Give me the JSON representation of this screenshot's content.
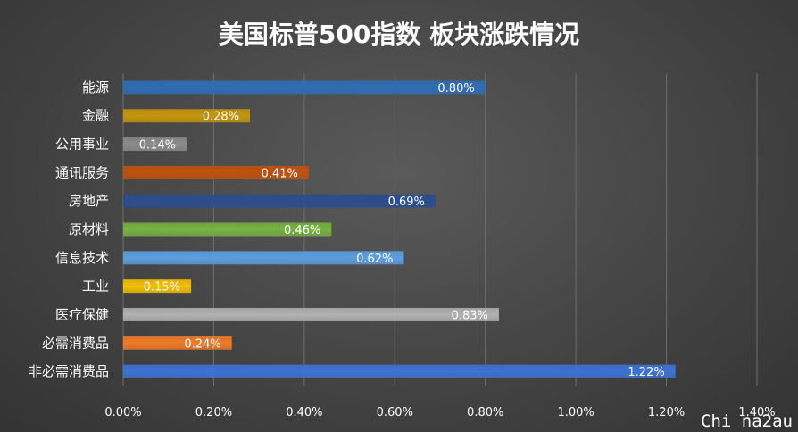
{
  "chart_data": {
    "type": "bar",
    "orientation": "horizontal",
    "title": "美国标普500指数 板块涨跌情况",
    "categories": [
      "能源",
      "金融",
      "公用事业",
      "通讯服务",
      "房地产",
      "原材料",
      "信息技术",
      "工业",
      "医疗保健",
      "必需消费品",
      "非必需消费品"
    ],
    "values": [
      0.8,
      0.28,
      0.14,
      0.41,
      0.69,
      0.46,
      0.62,
      0.15,
      0.83,
      0.24,
      1.22
    ],
    "value_labels": [
      "0.80%",
      "0.28%",
      "0.14%",
      "0.41%",
      "0.69%",
      "0.46%",
      "0.62%",
      "0.15%",
      "0.83%",
      "0.24%",
      "1.22%"
    ],
    "colors": [
      "#2f6db5",
      "#c4960c",
      "#8c8c8c",
      "#c0510f",
      "#2a4d8f",
      "#76b33f",
      "#5b9ee0",
      "#f5c000",
      "#b2b2b2",
      "#f07b28",
      "#3d73d6"
    ],
    "xlim": [
      0,
      1.4
    ],
    "xticks": [
      0,
      0.2,
      0.4,
      0.6,
      0.8,
      1.0,
      1.2,
      1.4
    ],
    "xtick_labels": [
      "0.00%",
      "0.20%",
      "0.40%",
      "0.60%",
      "0.80%",
      "1.00%",
      "1.20%",
      "1.40%"
    ],
    "xlabel": "",
    "ylabel": "",
    "grid": true,
    "legend": "none"
  },
  "watermark": "Chi na2au"
}
